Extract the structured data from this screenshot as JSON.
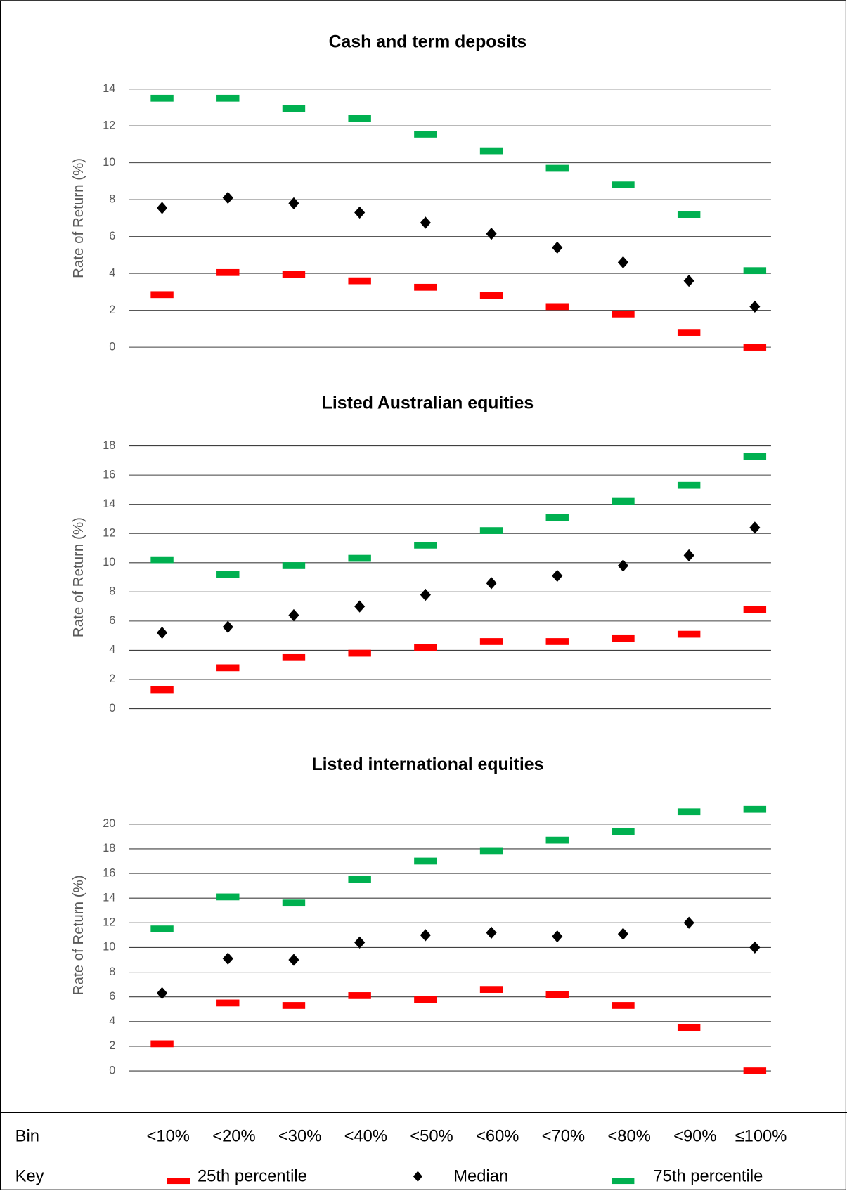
{
  "bins": {
    "label": "Bin",
    "categories": [
      "<10%",
      "<20%",
      "<30%",
      "<40%",
      "<50%",
      "<60%",
      "<70%",
      "<80%",
      "<90%",
      "≤100%"
    ]
  },
  "key": {
    "label": "Key",
    "series": [
      {
        "name": "25th percentile",
        "color": "#ff0000",
        "marker": "dash"
      },
      {
        "name": "Median",
        "color": "#000000",
        "marker": "diamond"
      },
      {
        "name": "75th percentile",
        "color": "#00b050",
        "marker": "dash"
      }
    ]
  },
  "chart_data": [
    {
      "type": "scatter",
      "title": "Cash and term deposits",
      "y_label": "Rate of Return (%)",
      "ylim": [
        0,
        14
      ],
      "yticks": [
        0,
        2,
        4,
        6,
        8,
        10,
        12,
        14
      ],
      "series": [
        {
          "values": [
            2.85,
            4.05,
            3.95,
            3.6,
            3.25,
            2.8,
            2.2,
            1.8,
            0.8,
            0
          ]
        },
        {
          "values": [
            7.55,
            8.1,
            7.8,
            7.3,
            6.75,
            6.15,
            5.4,
            4.6,
            3.6,
            2.2
          ]
        },
        {
          "values": [
            13.5,
            13.5,
            12.95,
            12.4,
            11.55,
            10.65,
            9.7,
            8.8,
            7.2,
            4.15
          ]
        }
      ]
    },
    {
      "type": "scatter",
      "title": "Listed Australian equities",
      "y_label": "Rate of Return (%)",
      "ylim": [
        0,
        18
      ],
      "yticks": [
        0,
        2,
        4,
        6,
        8,
        10,
        12,
        14,
        16,
        18
      ],
      "series": [
        {
          "values": [
            1.3,
            2.8,
            3.5,
            3.8,
            4.2,
            4.6,
            4.6,
            4.8,
            5.1,
            6.8
          ]
        },
        {
          "values": [
            5.2,
            5.6,
            6.4,
            7,
            7.8,
            8.6,
            9.1,
            9.8,
            10.5,
            12.4
          ]
        },
        {
          "values": [
            10.2,
            9.2,
            9.8,
            10.3,
            11.2,
            12.2,
            13.1,
            14.2,
            15.3,
            17.3
          ]
        }
      ]
    },
    {
      "type": "scatter",
      "title": "Listed international equities",
      "y_label": "Rate of Return (%)",
      "ylim": [
        0,
        22
      ],
      "yticks": [
        0,
        2,
        4,
        6,
        8,
        10,
        12,
        14,
        16,
        18,
        20
      ],
      "series": [
        {
          "values": [
            2.2,
            5.5,
            5.3,
            6.1,
            5.8,
            6.6,
            6.2,
            5.3,
            3.5,
            0
          ]
        },
        {
          "values": [
            6.3,
            9.1,
            9,
            10.4,
            11,
            11.2,
            10.9,
            11.1,
            12,
            10
          ]
        },
        {
          "values": [
            11.5,
            14.1,
            13.6,
            15.5,
            17,
            17.8,
            18.7,
            19.4,
            21,
            21.2
          ]
        }
      ]
    }
  ]
}
